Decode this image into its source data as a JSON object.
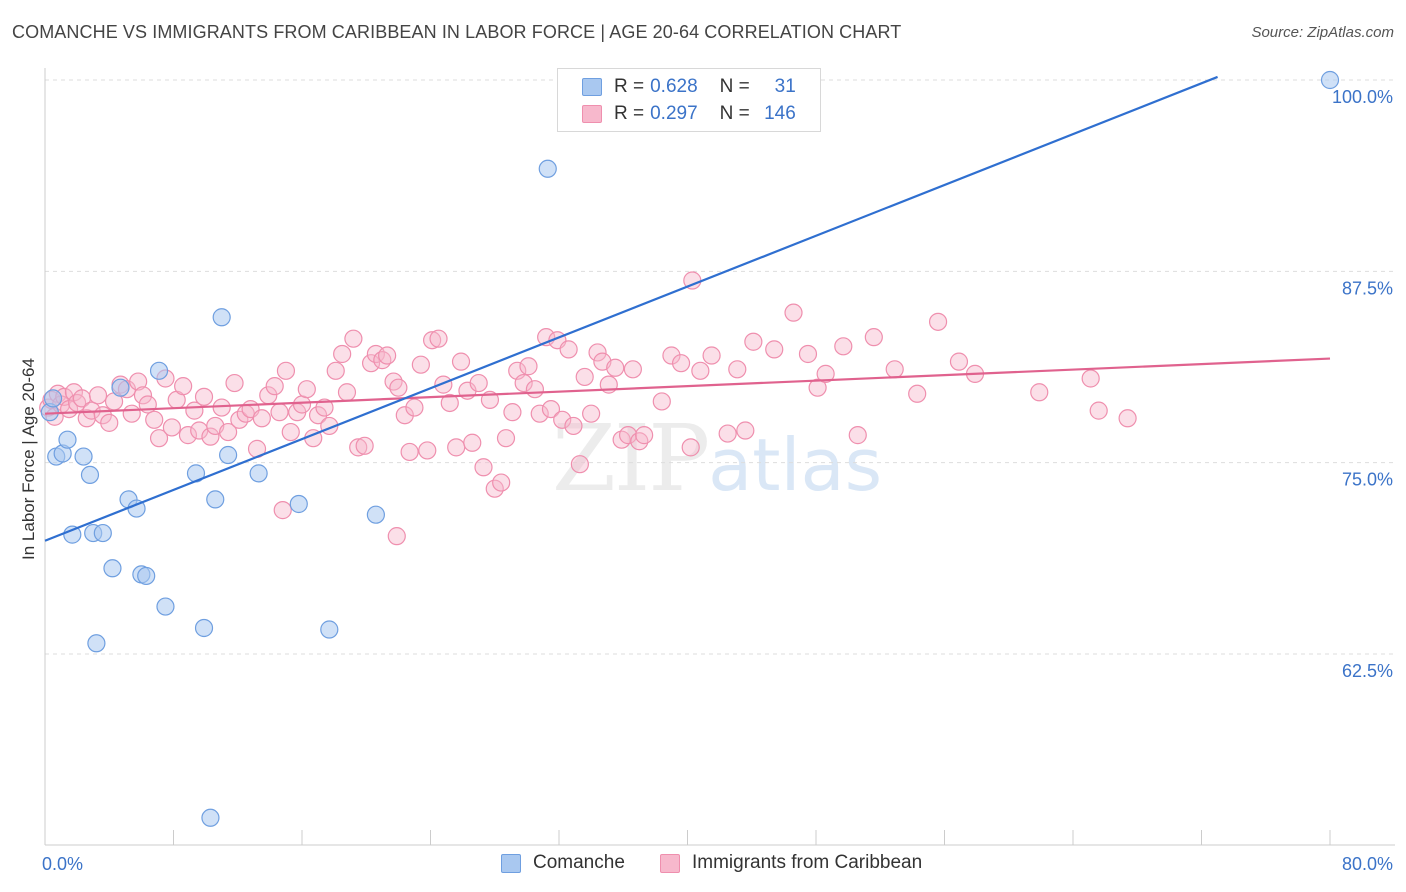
{
  "header": {
    "title": "COMANCHE VS IMMIGRANTS FROM CARIBBEAN IN LABOR FORCE | AGE 20-64 CORRELATION CHART",
    "source": "Source: ZipAtlas.com"
  },
  "watermark": {
    "zip": "ZIP",
    "atlas": "atlas"
  },
  "legend": {
    "rows": [
      {
        "r_label": "R =",
        "r_value": "0.628",
        "n_label": "N =",
        "n_value": "31"
      },
      {
        "r_label": "R =",
        "r_value": "0.297",
        "n_label": "N =",
        "n_value": "146"
      }
    ]
  },
  "colors": {
    "comanche_fill": "#a9c8f0",
    "comanche_stroke": "#6f9fe0",
    "comanche_line": "#2f6fd0",
    "caribbean_fill": "#f7b8cc",
    "caribbean_stroke": "#ef8fae",
    "caribbean_line": "#e0628e",
    "tick_text": "#3b73c8"
  },
  "chart_data": {
    "type": "scatter",
    "title": "COMANCHE VS IMMIGRANTS FROM CARIBBEAN IN LABOR FORCE | AGE 20-64 CORRELATION CHART",
    "xlabel": "",
    "ylabel": "In Labor Force | Age 20-64",
    "xlim": [
      0,
      80
    ],
    "ylim": [
      52,
      100.5
    ],
    "x_tick_labels": [
      {
        "value": 0,
        "label": "0.0%"
      },
      {
        "value": 80,
        "label": "80.0%"
      }
    ],
    "y_tick_labels": [
      {
        "value": 100,
        "label": "100.0%"
      },
      {
        "value": 87.5,
        "label": "87.5%"
      },
      {
        "value": 75,
        "label": "75.0%"
      },
      {
        "value": 62.5,
        "label": "62.5%"
      }
    ],
    "grid": "horizontal dashed",
    "legend_position": "top-center",
    "series": [
      {
        "name": "Comanche",
        "R": 0.628,
        "N": 31,
        "trend": {
          "x": [
            0,
            73
          ],
          "y": [
            69.9,
            100.2
          ]
        },
        "points": [
          [
            0.3,
            78.3
          ],
          [
            0.5,
            79.2
          ],
          [
            0.7,
            75.4
          ],
          [
            1.1,
            75.6
          ],
          [
            1.4,
            76.5
          ],
          [
            1.7,
            70.3
          ],
          [
            2.4,
            75.4
          ],
          [
            2.8,
            74.2
          ],
          [
            3.0,
            70.4
          ],
          [
            3.2,
            63.2
          ],
          [
            3.6,
            70.4
          ],
          [
            4.2,
            68.1
          ],
          [
            4.7,
            79.9
          ],
          [
            5.2,
            72.6
          ],
          [
            5.7,
            72.0
          ],
          [
            6.0,
            67.7
          ],
          [
            6.3,
            67.6
          ],
          [
            7.1,
            81.0
          ],
          [
            7.5,
            65.6
          ],
          [
            9.4,
            74.3
          ],
          [
            9.9,
            64.2
          ],
          [
            10.3,
            51.8
          ],
          [
            10.6,
            72.6
          ],
          [
            11.0,
            84.5
          ],
          [
            11.4,
            75.5
          ],
          [
            13.3,
            74.3
          ],
          [
            15.8,
            72.3
          ],
          [
            17.7,
            64.1
          ],
          [
            20.6,
            71.6
          ],
          [
            31.3,
            94.2
          ],
          [
            80.0,
            100.0
          ]
        ]
      },
      {
        "name": "Immigrants from Caribbean",
        "R": 0.297,
        "N": 146,
        "trend": {
          "x": [
            0,
            80
          ],
          "y": [
            78.2,
            81.8
          ]
        },
        "points": [
          [
            0.2,
            78.6
          ],
          [
            0.4,
            79.1
          ],
          [
            0.6,
            78.0
          ],
          [
            0.8,
            79.5
          ],
          [
            1.0,
            78.8
          ],
          [
            1.2,
            79.3
          ],
          [
            1.5,
            78.5
          ],
          [
            1.8,
            79.6
          ],
          [
            2.0,
            78.9
          ],
          [
            2.3,
            79.2
          ],
          [
            2.6,
            77.9
          ],
          [
            2.9,
            78.4
          ],
          [
            3.3,
            79.4
          ],
          [
            3.6,
            78.1
          ],
          [
            4.0,
            77.6
          ],
          [
            4.3,
            79.0
          ],
          [
            4.7,
            80.1
          ],
          [
            5.1,
            79.8
          ],
          [
            5.4,
            78.2
          ],
          [
            5.8,
            80.3
          ],
          [
            6.1,
            79.4
          ],
          [
            6.4,
            78.8
          ],
          [
            6.8,
            77.8
          ],
          [
            7.1,
            76.6
          ],
          [
            7.5,
            80.5
          ],
          [
            7.9,
            77.3
          ],
          [
            8.2,
            79.1
          ],
          [
            8.6,
            80.0
          ],
          [
            8.9,
            76.8
          ],
          [
            9.3,
            78.4
          ],
          [
            9.6,
            77.1
          ],
          [
            9.9,
            79.3
          ],
          [
            10.3,
            76.7
          ],
          [
            10.6,
            77.4
          ],
          [
            11.0,
            78.6
          ],
          [
            11.4,
            77.0
          ],
          [
            11.8,
            80.2
          ],
          [
            12.1,
            77.8
          ],
          [
            12.5,
            78.2
          ],
          [
            12.8,
            78.5
          ],
          [
            13.2,
            75.9
          ],
          [
            13.5,
            77.9
          ],
          [
            13.9,
            79.4
          ],
          [
            14.3,
            80.0
          ],
          [
            14.6,
            78.3
          ],
          [
            15.0,
            81.0
          ],
          [
            15.3,
            77.0
          ],
          [
            15.7,
            78.3
          ],
          [
            16.0,
            78.8
          ],
          [
            16.3,
            79.8
          ],
          [
            16.7,
            76.6
          ],
          [
            17.0,
            78.1
          ],
          [
            17.4,
            78.6
          ],
          [
            17.7,
            77.4
          ],
          [
            18.1,
            81.0
          ],
          [
            18.5,
            82.1
          ],
          [
            18.8,
            79.6
          ],
          [
            19.2,
            83.1
          ],
          [
            19.5,
            76.0
          ],
          [
            19.9,
            76.1
          ],
          [
            20.3,
            81.5
          ],
          [
            20.6,
            82.1
          ],
          [
            21.0,
            81.7
          ],
          [
            21.3,
            82.0
          ],
          [
            21.7,
            80.3
          ],
          [
            22.0,
            79.9
          ],
          [
            22.4,
            78.1
          ],
          [
            22.7,
            75.7
          ],
          [
            23.0,
            78.6
          ],
          [
            23.4,
            81.4
          ],
          [
            23.8,
            75.8
          ],
          [
            24.1,
            83.0
          ],
          [
            24.5,
            83.1
          ],
          [
            24.8,
            80.1
          ],
          [
            25.2,
            78.9
          ],
          [
            25.6,
            76.0
          ],
          [
            25.9,
            81.6
          ],
          [
            26.3,
            79.7
          ],
          [
            26.6,
            76.3
          ],
          [
            27.0,
            80.2
          ],
          [
            27.3,
            74.7
          ],
          [
            27.7,
            79.1
          ],
          [
            28.0,
            73.3
          ],
          [
            28.4,
            73.7
          ],
          [
            28.7,
            76.6
          ],
          [
            29.1,
            78.3
          ],
          [
            29.4,
            81.0
          ],
          [
            29.8,
            80.2
          ],
          [
            30.1,
            81.3
          ],
          [
            30.5,
            79.8
          ],
          [
            30.8,
            78.2
          ],
          [
            31.2,
            83.2
          ],
          [
            31.5,
            78.5
          ],
          [
            31.9,
            83.0
          ],
          [
            32.2,
            77.8
          ],
          [
            32.6,
            82.4
          ],
          [
            32.9,
            77.4
          ],
          [
            33.3,
            74.9
          ],
          [
            33.6,
            80.6
          ],
          [
            34.0,
            78.2
          ],
          [
            34.4,
            82.2
          ],
          [
            34.7,
            81.6
          ],
          [
            35.1,
            80.1
          ],
          [
            35.5,
            81.2
          ],
          [
            35.9,
            76.5
          ],
          [
            36.3,
            76.8
          ],
          [
            36.6,
            81.1
          ],
          [
            37.0,
            76.4
          ],
          [
            37.3,
            76.8
          ],
          [
            38.4,
            79.0
          ],
          [
            39.0,
            82.0
          ],
          [
            39.6,
            81.5
          ],
          [
            40.2,
            76.0
          ],
          [
            40.8,
            81.0
          ],
          [
            41.5,
            82.0
          ],
          [
            42.5,
            76.9
          ],
          [
            43.1,
            81.1
          ],
          [
            43.6,
            77.1
          ],
          [
            44.1,
            82.9
          ],
          [
            45.4,
            82.4
          ],
          [
            46.6,
            84.8
          ],
          [
            47.5,
            82.1
          ],
          [
            48.1,
            79.9
          ],
          [
            48.6,
            80.8
          ],
          [
            49.7,
            82.6
          ],
          [
            50.6,
            76.8
          ],
          [
            51.6,
            83.2
          ],
          [
            52.9,
            81.1
          ],
          [
            54.3,
            79.5
          ],
          [
            55.6,
            84.2
          ],
          [
            56.9,
            81.6
          ],
          [
            57.9,
            80.8
          ],
          [
            61.9,
            79.6
          ],
          [
            65.1,
            80.5
          ],
          [
            65.6,
            78.4
          ],
          [
            67.4,
            77.9
          ],
          [
            40.3,
            86.9
          ],
          [
            14.8,
            71.9
          ],
          [
            21.9,
            70.2
          ]
        ]
      }
    ]
  },
  "bottom_legend": {
    "items": [
      {
        "label": "Comanche"
      },
      {
        "label": "Immigrants from Caribbean"
      }
    ]
  }
}
